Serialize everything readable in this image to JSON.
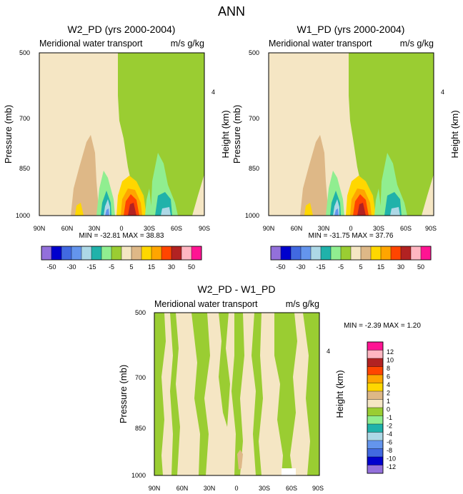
{
  "page_title": "ANN",
  "colors": {
    "n50": "#9370db",
    "n40": "#0000cd",
    "n30": "#4169e1",
    "n20": "#6495ed",
    "n15": "#add8e6",
    "n10": "#20b2aa",
    "n5": "#90ee90",
    "n1": "#9acd32",
    "z0": "#f5e6c4",
    "p1": "#deb887",
    "p5": "#ffd700",
    "p10": "#ffa500",
    "p15": "#ff4500",
    "p30": "#b22222",
    "p40": "#ffb6c1",
    "p50": "#ff1493"
  },
  "chart_data": [
    {
      "id": "panel_w2",
      "type": "heatmap",
      "title": "W2_PD (yrs 2000-2004)",
      "subtitle_left": "Meridional water transport",
      "subtitle_right": "m/s g/kg",
      "xlabel": "",
      "ylabel": "Pressure (mb)",
      "ylabel_right": "Height (km)",
      "x_ticks": [
        "90N",
        "60N",
        "30N",
        "0",
        "30S",
        "60S",
        "90S"
      ],
      "y_ticks": [
        "500",
        "700",
        "850",
        "1000"
      ],
      "right_ticks": [
        "4"
      ],
      "stats": "MIN = -32.81   MAX =  38.83",
      "min": -32.81,
      "max": 38.83
    },
    {
      "id": "panel_w1",
      "type": "heatmap",
      "title": "W1_PD (yrs 2000-2004)",
      "subtitle_left": "Meridional water transport",
      "subtitle_right": "m/s g/kg",
      "xlabel": "",
      "ylabel": "Pressure (mb)",
      "ylabel_right": "Height (km)",
      "x_ticks": [
        "90N",
        "60N",
        "30N",
        "0",
        "30S",
        "60S",
        "90S"
      ],
      "y_ticks": [
        "500",
        "700",
        "850",
        "1000"
      ],
      "right_ticks": [
        "4"
      ],
      "stats": "MIN = -31.75   MAX =  37.76",
      "min": -31.75,
      "max": 37.76
    },
    {
      "id": "panel_diff",
      "type": "heatmap",
      "title": "W2_PD - W1_PD",
      "subtitle_left": "Meridional water transport",
      "subtitle_right": "m/s g/kg",
      "xlabel": "",
      "ylabel": "Pressure (mb)",
      "ylabel_right": "Height (km)",
      "x_ticks": [
        "90N",
        "60N",
        "30N",
        "0",
        "30S",
        "60S",
        "90S"
      ],
      "y_ticks": [
        "500",
        "700",
        "850",
        "1000"
      ],
      "right_ticks": [
        "4"
      ],
      "stats": "MIN =  -2.39   MAX =   1.20",
      "min": -2.39,
      "max": 1.2
    }
  ],
  "labelbar_top": {
    "labels": [
      "-50",
      "-30",
      "-15",
      "-5",
      "5",
      "15",
      "30",
      "50"
    ],
    "colors": [
      "n50",
      "n40",
      "n30",
      "n20",
      "n15",
      "n10",
      "n5",
      "n1",
      "z0",
      "p1",
      "p5",
      "p10",
      "p15",
      "p30",
      "p40",
      "p50"
    ]
  },
  "labelbar_diff": {
    "labels": [
      "12",
      "10",
      "8",
      "6",
      "4",
      "2",
      "1",
      "0",
      "-1",
      "-2",
      "-4",
      "-6",
      "-8",
      "-10",
      "-12"
    ],
    "colors": [
      "p50",
      "p40",
      "p30",
      "p15",
      "p10",
      "p5",
      "p1",
      "z0",
      "n1",
      "n5",
      "n10",
      "n15",
      "n20",
      "n30",
      "n40",
      "n50"
    ]
  }
}
